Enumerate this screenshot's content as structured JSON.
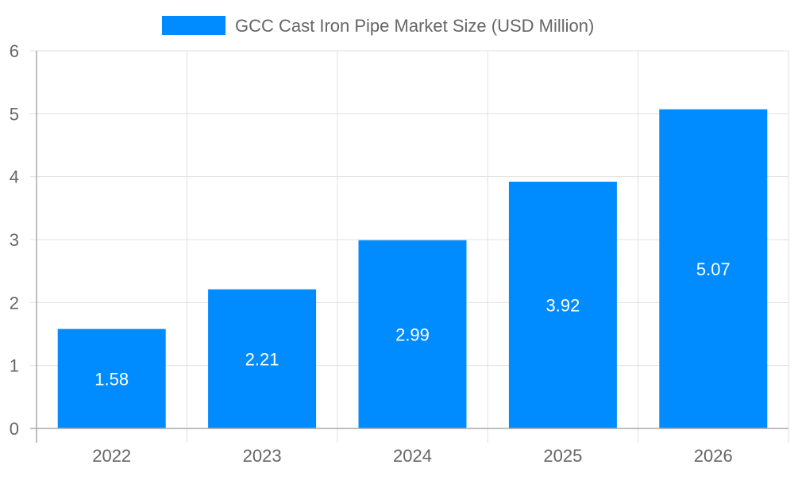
{
  "chart_data": {
    "type": "bar",
    "categories": [
      "2022",
      "2023",
      "2024",
      "2025",
      "2026"
    ],
    "series": [
      {
        "name": "GCC Cast Iron Pipe Market Size (USD Million)",
        "values": [
          1.58,
          2.21,
          2.99,
          3.92,
          5.07
        ],
        "color": "#008CFF"
      }
    ],
    "data_labels": [
      "1.58",
      "2.21",
      "2.99",
      "3.92",
      "5.07"
    ],
    "ylim": [
      0,
      6
    ],
    "yticks": [
      "0",
      "1",
      "2",
      "3",
      "4",
      "5",
      "6"
    ],
    "grid": true,
    "legend_position": "top",
    "xlabel": "",
    "ylabel": ""
  }
}
